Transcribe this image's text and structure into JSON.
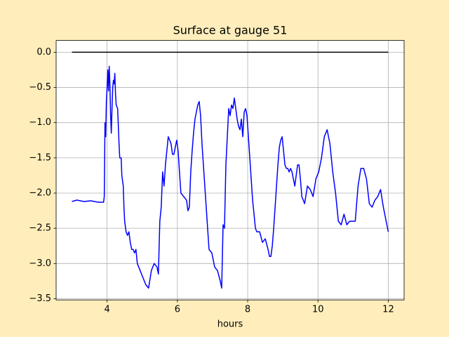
{
  "chart_data": {
    "type": "line",
    "title": "Surface at gauge 51",
    "xlabel": "hours",
    "xlim": [
      2.55,
      12.45
    ],
    "xticks": [
      4,
      6,
      8,
      10,
      12
    ],
    "ylim": [
      -3.5175,
      0.1675
    ],
    "yticks": [
      {
        "value": 0,
        "label": "0.0"
      },
      {
        "value": -0.5,
        "label": "−0.5"
      },
      {
        "value": -1,
        "label": "−1.0"
      },
      {
        "value": -1.5,
        "label": "−1.5"
      },
      {
        "value": -2,
        "label": "−2.0"
      },
      {
        "value": -2.5,
        "label": "−2.5"
      },
      {
        "value": -3,
        "label": "−3.0"
      },
      {
        "value": -3.5,
        "label": "−3.5"
      }
    ],
    "grid": true,
    "series": [
      {
        "color": "#000000",
        "x": [
          3.0,
          12.0
        ],
        "values": [
          0,
          0
        ]
      },
      {
        "color": "#0000ff",
        "x": [
          3.0,
          3.14,
          3.34,
          3.54,
          3.74,
          3.9,
          3.92,
          3.94,
          3.96,
          3.98,
          4.0,
          4.02,
          4.04,
          4.06,
          4.08,
          4.1,
          4.12,
          4.14,
          4.16,
          4.18,
          4.2,
          4.22,
          4.24,
          4.26,
          4.3,
          4.34,
          4.36,
          4.4,
          4.42,
          4.46,
          4.48,
          4.5,
          4.54,
          4.58,
          4.62,
          4.66,
          4.7,
          4.74,
          4.78,
          4.82,
          4.86,
          4.94,
          5.02,
          5.1,
          5.18,
          5.26,
          5.34,
          5.42,
          5.46,
          5.5,
          5.54,
          5.58,
          5.62,
          5.66,
          5.7,
          5.74,
          5.78,
          5.82,
          5.86,
          5.9,
          5.94,
          5.98,
          6.02,
          6.06,
          6.1,
          6.18,
          6.26,
          6.3,
          6.34,
          6.38,
          6.42,
          6.46,
          6.5,
          6.54,
          6.58,
          6.62,
          6.66,
          6.7,
          6.74,
          6.78,
          6.82,
          6.86,
          6.9,
          6.98,
          7.06,
          7.14,
          7.22,
          7.26,
          7.3,
          7.34,
          7.38,
          7.42,
          7.46,
          7.5,
          7.54,
          7.58,
          7.62,
          7.66,
          7.7,
          7.74,
          7.78,
          7.82,
          7.86,
          7.9,
          7.94,
          7.98,
          8.02,
          8.06,
          8.1,
          8.14,
          8.18,
          8.22,
          8.26,
          8.34,
          8.42,
          8.5,
          8.58,
          8.62,
          8.66,
          8.7,
          8.74,
          8.82,
          8.86,
          8.9,
          8.94,
          8.98,
          9.02,
          9.06,
          9.1,
          9.14,
          9.18,
          9.22,
          9.26,
          9.34,
          9.42,
          9.46,
          9.5,
          9.54,
          9.62,
          9.7,
          9.78,
          9.86,
          9.94,
          10.02,
          10.1,
          10.18,
          10.26,
          10.34,
          10.42,
          10.5,
          10.58,
          10.66,
          10.74,
          10.82,
          10.9,
          10.98,
          11.06,
          11.14,
          11.22,
          11.3,
          11.38,
          11.46,
          11.54,
          11.62,
          11.7,
          11.78,
          11.86,
          11.94,
          12.0
        ],
        "values": [
          -2.12,
          -2.1,
          -2.12,
          -2.11,
          -2.13,
          -2.13,
          -2.05,
          -1.0,
          -1.2,
          -0.7,
          -0.5,
          -0.25,
          -0.55,
          -0.2,
          -0.45,
          -0.9,
          -1.15,
          -0.8,
          -0.5,
          -0.4,
          -0.45,
          -0.3,
          -0.6,
          -0.75,
          -0.8,
          -1.3,
          -1.5,
          -1.5,
          -1.75,
          -1.9,
          -2.2,
          -2.4,
          -2.55,
          -2.6,
          -2.55,
          -2.7,
          -2.8,
          -2.8,
          -2.85,
          -2.8,
          -3.0,
          -3.1,
          -3.2,
          -3.3,
          -3.35,
          -3.1,
          -3.0,
          -3.05,
          -3.15,
          -2.4,
          -2.2,
          -1.7,
          -1.9,
          -1.6,
          -1.4,
          -1.2,
          -1.25,
          -1.3,
          -1.45,
          -1.45,
          -1.35,
          -1.25,
          -1.4,
          -1.7,
          -2.0,
          -2.05,
          -2.1,
          -2.25,
          -2.2,
          -1.7,
          -1.4,
          -1.15,
          -0.95,
          -0.85,
          -0.75,
          -0.7,
          -0.9,
          -1.3,
          -1.6,
          -1.9,
          -2.2,
          -2.5,
          -2.8,
          -2.85,
          -3.05,
          -3.1,
          -3.25,
          -3.35,
          -2.45,
          -2.5,
          -1.6,
          -1.2,
          -0.8,
          -0.9,
          -0.75,
          -0.8,
          -0.65,
          -0.8,
          -0.95,
          -1.05,
          -1.1,
          -0.95,
          -1.2,
          -0.85,
          -0.8,
          -0.9,
          -1.2,
          -1.5,
          -1.8,
          -2.1,
          -2.3,
          -2.5,
          -2.55,
          -2.55,
          -2.7,
          -2.65,
          -2.8,
          -2.9,
          -2.9,
          -2.75,
          -2.5,
          -1.9,
          -1.6,
          -1.35,
          -1.25,
          -1.2,
          -1.4,
          -1.6,
          -1.65,
          -1.65,
          -1.7,
          -1.65,
          -1.7,
          -1.9,
          -1.6,
          -1.6,
          -1.8,
          -2.05,
          -2.15,
          -1.9,
          -1.95,
          -2.05,
          -1.8,
          -1.7,
          -1.5,
          -1.2,
          -1.1,
          -1.3,
          -1.7,
          -2.0,
          -2.4,
          -2.45,
          -2.3,
          -2.45,
          -2.4,
          -2.4,
          -2.4,
          -1.9,
          -1.65,
          -1.65,
          -1.8,
          -2.15,
          -2.2,
          -2.1,
          -2.05,
          -1.95,
          -2.2,
          -2.4,
          -2.55
        ]
      }
    ]
  }
}
